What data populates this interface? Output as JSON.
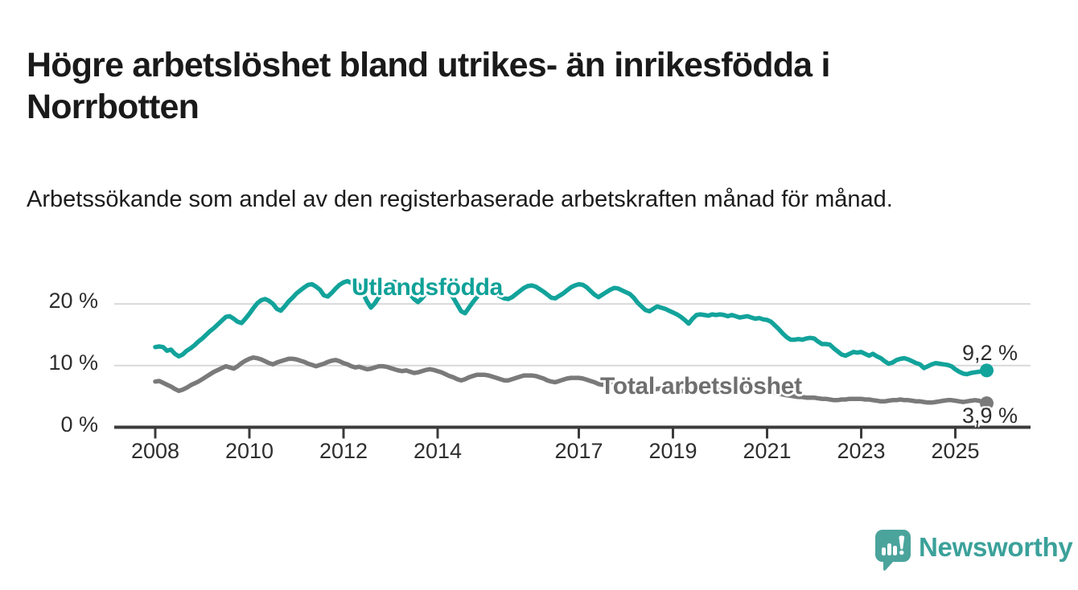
{
  "header": {
    "title": "Högre arbetslöshet bland utrikes- än inrikesfödda i Norrbotten",
    "subtitle": "Arbetssökande som andel av den registerbaserade arbetskraften månad för månad."
  },
  "footer": {
    "brand": "Newsworthy"
  },
  "colors": {
    "foreign_born_line": "#12a39b",
    "total_line": "#7a7a7a",
    "axis": "#3b3b3b",
    "gridline": "#d9d9d9",
    "logo_teal": "#4ba49c"
  },
  "chart_data": {
    "type": "line",
    "title": "Högre arbetslöshet bland utrikes- än inrikesfödda i Norrbotten",
    "subtitle": "Arbetssökande som andel av den registerbaserade arbetskraften månad för månad.",
    "x_unit": "month",
    "x_start": "2008-01",
    "x_end": "2025-09",
    "x_ticks": [
      2008,
      2010,
      2012,
      2014,
      2017,
      2019,
      2021,
      2023,
      2025
    ],
    "y_ticks": [
      "0 %",
      "10 %",
      "20 %"
    ],
    "y_tick_values": [
      0,
      10,
      20
    ],
    "ylim": [
      0,
      26
    ],
    "grid": "horizontal",
    "legend_position": "inline-labels",
    "series": [
      {
        "name": "Utlandsfödda",
        "color": "#12a39b",
        "end_label": "9,2 %",
        "end_value": 9.2,
        "values": [
          13.0,
          13.1,
          13.0,
          12.4,
          12.6,
          11.9,
          11.5,
          11.8,
          12.4,
          12.8,
          13.3,
          13.9,
          14.4,
          15.0,
          15.6,
          16.1,
          16.7,
          17.3,
          17.9,
          18.0,
          17.6,
          17.1,
          16.9,
          17.6,
          18.4,
          19.3,
          20.1,
          20.6,
          20.8,
          20.5,
          20.0,
          19.2,
          18.9,
          19.6,
          20.4,
          21.0,
          21.7,
          22.2,
          22.7,
          23.1,
          23.2,
          22.8,
          22.3,
          21.4,
          21.2,
          21.8,
          22.5,
          23.1,
          23.5,
          23.7,
          23.4,
          23.6,
          23.0,
          21.7,
          20.4,
          19.4,
          20.1,
          21.1,
          22.1,
          22.9,
          23.4,
          23.6,
          23.3,
          22.9,
          22.4,
          21.6,
          20.8,
          20.3,
          20.9,
          21.7,
          22.3,
          22.7,
          22.9,
          22.7,
          22.3,
          21.8,
          21.0,
          19.9,
          18.8,
          18.5,
          19.4,
          20.3,
          21.1,
          21.7,
          22.0,
          22.1,
          21.9,
          21.6,
          21.2,
          20.9,
          20.8,
          21.1,
          21.6,
          22.1,
          22.6,
          22.9,
          23.0,
          22.8,
          22.4,
          22.0,
          21.5,
          21.0,
          20.9,
          21.3,
          21.7,
          22.2,
          22.7,
          23.0,
          23.2,
          23.1,
          22.7,
          22.1,
          21.5,
          21.1,
          21.5,
          21.9,
          22.3,
          22.6,
          22.5,
          22.2,
          21.9,
          21.6,
          21.0,
          20.2,
          19.6,
          19.0,
          18.8,
          19.2,
          19.6,
          19.4,
          19.2,
          18.9,
          18.6,
          18.3,
          17.9,
          17.4,
          16.8,
          17.6,
          18.2,
          18.3,
          18.2,
          18.1,
          18.3,
          18.2,
          18.3,
          18.2,
          18.0,
          18.2,
          18.0,
          17.8,
          17.9,
          18.0,
          17.8,
          17.6,
          17.7,
          17.5,
          17.4,
          17.1,
          16.5,
          15.9,
          15.2,
          14.6,
          14.2,
          14.2,
          14.3,
          14.2,
          14.4,
          14.5,
          14.4,
          13.9,
          13.5,
          13.5,
          13.4,
          12.8,
          12.3,
          11.8,
          11.6,
          11.9,
          12.2,
          12.1,
          12.2,
          11.9,
          11.6,
          11.9,
          11.5,
          11.2,
          10.7,
          10.3,
          10.5,
          10.9,
          11.1,
          11.2,
          11.0,
          10.7,
          10.4,
          10.2,
          9.6,
          9.9,
          10.2,
          10.4,
          10.3,
          10.2,
          10.1,
          9.9,
          9.4,
          9.0,
          8.7,
          8.6,
          8.8,
          8.9,
          9.0,
          9.1,
          9.2
        ]
      },
      {
        "name": "Total arbetslöshet",
        "color": "#7a7a7a",
        "end_label": "3,9 %",
        "end_value": 3.9,
        "values": [
          7.4,
          7.5,
          7.2,
          6.9,
          6.6,
          6.2,
          5.9,
          6.1,
          6.4,
          6.8,
          7.1,
          7.4,
          7.8,
          8.2,
          8.6,
          9.0,
          9.3,
          9.6,
          9.9,
          9.7,
          9.5,
          9.9,
          10.4,
          10.8,
          11.1,
          11.3,
          11.2,
          11.0,
          10.7,
          10.4,
          10.2,
          10.5,
          10.7,
          10.9,
          11.1,
          11.1,
          11.0,
          10.8,
          10.6,
          10.3,
          10.1,
          9.9,
          10.1,
          10.3,
          10.6,
          10.8,
          10.9,
          10.7,
          10.4,
          10.2,
          9.9,
          9.7,
          9.8,
          9.6,
          9.4,
          9.5,
          9.7,
          9.9,
          9.9,
          9.8,
          9.6,
          9.4,
          9.2,
          9.1,
          9.2,
          9.0,
          8.8,
          8.9,
          9.1,
          9.3,
          9.4,
          9.3,
          9.1,
          8.9,
          8.6,
          8.3,
          8.1,
          7.8,
          7.6,
          7.8,
          8.1,
          8.3,
          8.5,
          8.5,
          8.5,
          8.4,
          8.2,
          8.0,
          7.8,
          7.6,
          7.6,
          7.8,
          8.0,
          8.2,
          8.4,
          8.4,
          8.4,
          8.3,
          8.1,
          7.9,
          7.6,
          7.4,
          7.3,
          7.5,
          7.7,
          7.9,
          8.0,
          8.0,
          8.0,
          7.9,
          7.7,
          7.5,
          7.3,
          7.0,
          6.9,
          7.1,
          7.2,
          7.3,
          7.3,
          7.2,
          7.0,
          6.9,
          6.7,
          6.5,
          6.3,
          6.1,
          6.0,
          6.1,
          6.2,
          6.3,
          6.3,
          6.2,
          6.1,
          6.0,
          5.9,
          5.8,
          5.7,
          5.8,
          5.9,
          6.0,
          6.0,
          5.9,
          5.9,
          6.0,
          6.1,
          6.2,
          6.5,
          6.8,
          6.9,
          7.0,
          6.9,
          6.8,
          6.6,
          6.4,
          6.2,
          6.1,
          6.0,
          5.9,
          5.7,
          5.5,
          5.3,
          5.2,
          5.1,
          5.0,
          4.9,
          4.9,
          4.8,
          4.8,
          4.8,
          4.7,
          4.6,
          4.6,
          4.5,
          4.4,
          4.4,
          4.5,
          4.5,
          4.6,
          4.6,
          4.6,
          4.6,
          4.5,
          4.5,
          4.4,
          4.3,
          4.2,
          4.2,
          4.3,
          4.4,
          4.4,
          4.5,
          4.4,
          4.4,
          4.3,
          4.2,
          4.2,
          4.1,
          4.0,
          4.0,
          4.1,
          4.2,
          4.3,
          4.4,
          4.4,
          4.3,
          4.2,
          4.1,
          4.2,
          4.3,
          4.4,
          4.3,
          4.1,
          3.9
        ]
      }
    ]
  }
}
